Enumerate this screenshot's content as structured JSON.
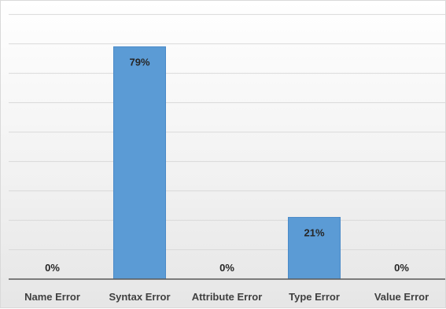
{
  "chart_data": {
    "type": "bar",
    "categories": [
      "Name Error",
      "Syntax Error",
      "Attribute Error",
      "Type Error",
      "Value Error"
    ],
    "values": [
      0,
      79,
      0,
      21,
      0
    ],
    "data_labels": [
      "0%",
      "79%",
      "0%",
      "21%",
      "0%"
    ],
    "ylim": [
      0,
      90
    ],
    "y_unit": "%",
    "grid": true,
    "legend": "none",
    "bar_color": "#5b9bd5",
    "bar_edge_color": "#4a8ac8"
  }
}
